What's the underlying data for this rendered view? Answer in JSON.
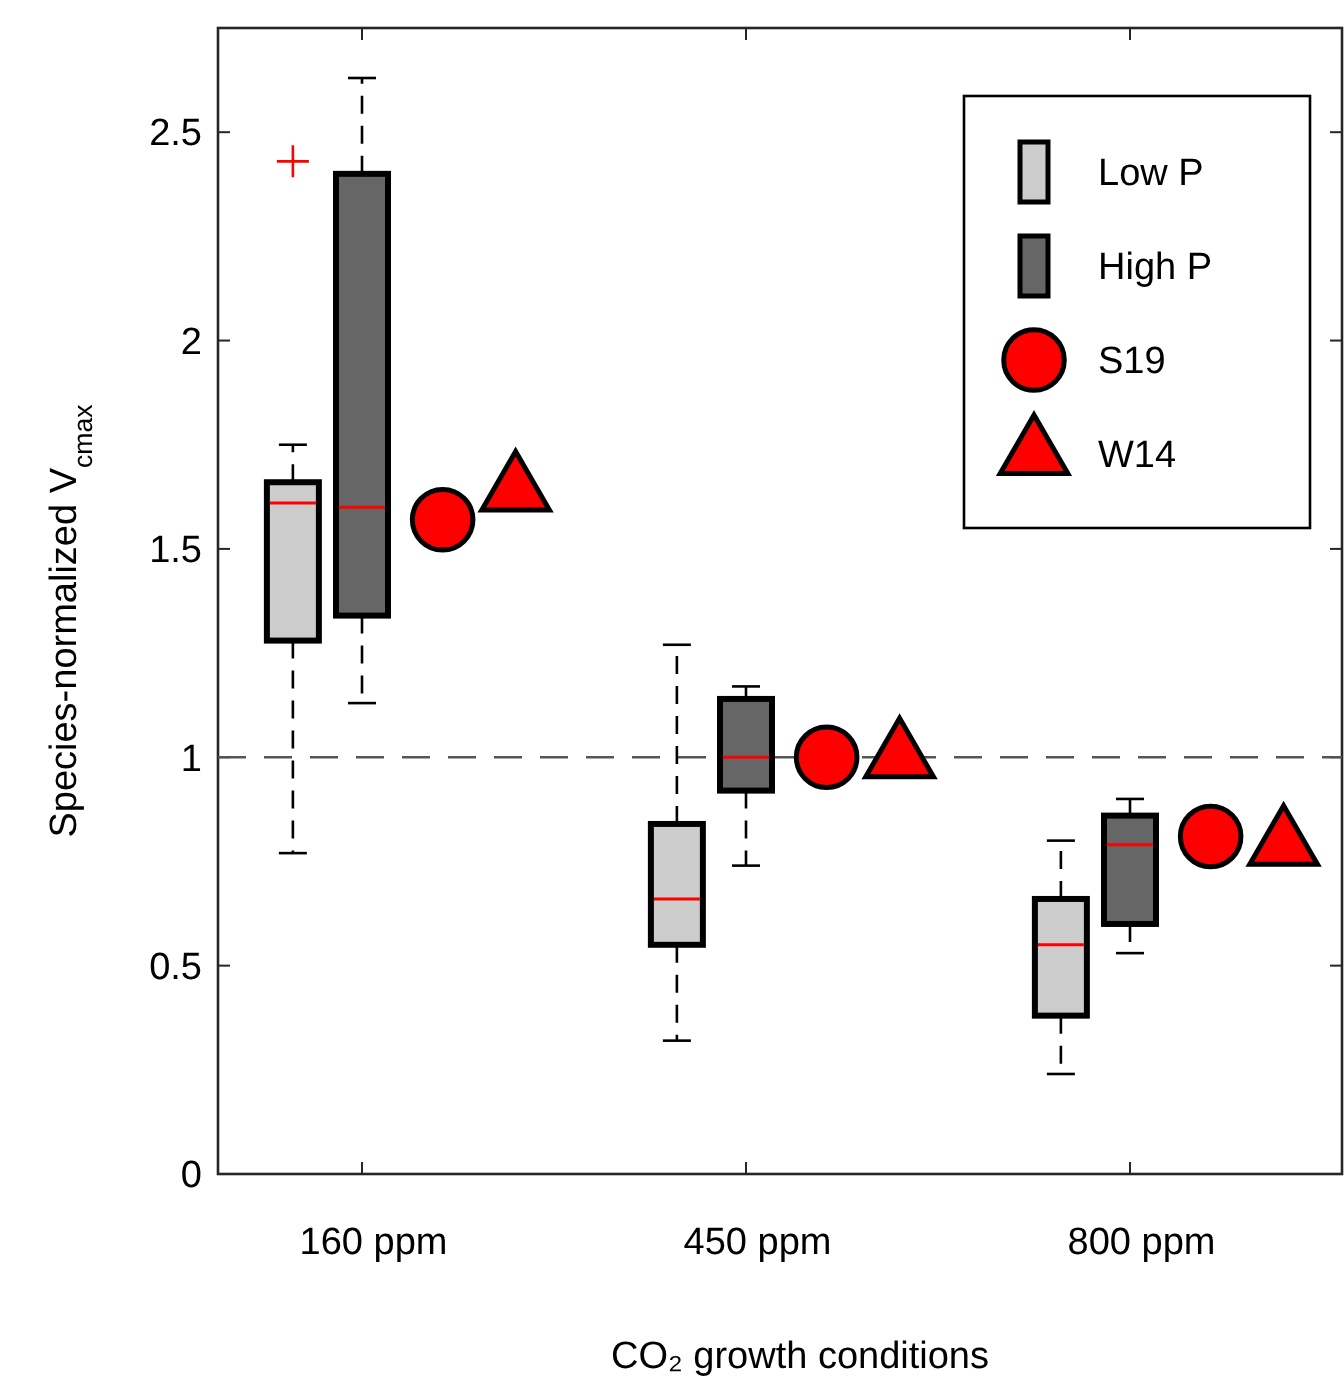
{
  "chart_data": {
    "type": "box",
    "xlabel": "CO₂ growth conditions",
    "ylabel": "Species-normalized V$_{cmax}$",
    "categories": [
      "160 ppm",
      "450 ppm",
      "800 ppm"
    ],
    "ylim": [
      0,
      2.75
    ],
    "yticks": [
      0,
      0.5,
      1,
      1.5,
      2,
      2.5
    ],
    "legend": "top right",
    "grid": false,
    "ref_lines": [
      {
        "axis": "y",
        "value": 1,
        "color": "#555555",
        "line_style": "dashed"
      }
    ],
    "series": [
      {
        "name": "Low P",
        "color": "#cccccc",
        "boxes": [
          {
            "low": 0.77,
            "q1": 1.28,
            "median": 1.61,
            "q3": 1.66,
            "high": 1.75,
            "outliers": [
              2.43
            ]
          },
          {
            "low": 0.32,
            "q1": 0.55,
            "median": 0.66,
            "q3": 0.84,
            "high": 1.27
          },
          {
            "low": 0.24,
            "q1": 0.38,
            "median": 0.55,
            "q3": 0.66,
            "high": 0.8
          }
        ]
      },
      {
        "name": "High P",
        "color": "#666666",
        "boxes": [
          {
            "low": 1.13,
            "q1": 1.34,
            "median": 1.6,
            "q3": 2.4,
            "high": 2.63
          },
          {
            "low": 0.74,
            "q1": 0.92,
            "median": 1.0,
            "q3": 1.14,
            "high": 1.17
          },
          {
            "low": 0.53,
            "q1": 0.6,
            "median": 0.79,
            "q3": 0.86,
            "high": 0.9
          }
        ]
      },
      {
        "name": "S19",
        "type": "scatter",
        "marker": "circle",
        "color": "#ff0000",
        "x": [
          "160 ppm",
          "450 ppm",
          "800 ppm"
        ],
        "values": [
          1.57,
          1.0,
          0.81
        ]
      },
      {
        "name": "W14",
        "type": "scatter",
        "marker": "triangle",
        "color": "#ff0000",
        "x": [
          "160 ppm",
          "450 ppm",
          "800 ppm"
        ],
        "values": [
          1.64,
          1.0,
          0.79
        ]
      }
    ]
  }
}
